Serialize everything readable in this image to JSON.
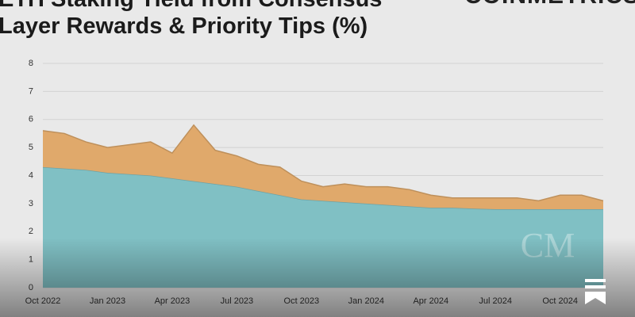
{
  "chart_data": {
    "type": "stacked_area",
    "title": [
      "ETH Staking Yield from Consensus",
      "Layer Rewards & Priority Tips (%)"
    ],
    "logo": "COINMETRICS",
    "watermark": "CM",
    "x": [
      "Oct 2022",
      null,
      null,
      "Jan 2023",
      null,
      null,
      "Apr 2023",
      null,
      null,
      "Jul 2023",
      null,
      null,
      "Oct 2023",
      null,
      null,
      "Jan 2024",
      null,
      null,
      "Apr 2024",
      null,
      null,
      "Jul 2024",
      null,
      null,
      "Oct 2024",
      null,
      null
    ],
    "series": [
      {
        "name": "Consensus Layer Rewards",
        "color": "#80c0c4",
        "values": [
          4.3,
          4.25,
          4.2,
          4.1,
          4.05,
          4.0,
          3.9,
          3.8,
          3.7,
          3.6,
          3.45,
          3.3,
          3.15,
          3.1,
          3.05,
          3.0,
          2.95,
          2.9,
          2.85,
          2.85,
          2.82,
          2.8,
          2.8,
          2.8,
          2.8,
          2.8,
          2.8
        ]
      },
      {
        "name": "Priority Tips",
        "color": "#e0a96b",
        "values": [
          1.3,
          1.25,
          1.0,
          0.9,
          1.05,
          1.2,
          0.9,
          2.0,
          1.2,
          1.1,
          0.95,
          1.0,
          0.65,
          0.5,
          0.65,
          0.6,
          0.65,
          0.6,
          0.45,
          0.35,
          0.38,
          0.4,
          0.4,
          0.3,
          0.5,
          0.5,
          0.3
        ]
      }
    ],
    "ylim": [
      0,
      8
    ],
    "yticks": [
      0,
      1,
      2,
      3,
      4,
      5,
      6,
      7,
      8
    ],
    "grid": true
  }
}
